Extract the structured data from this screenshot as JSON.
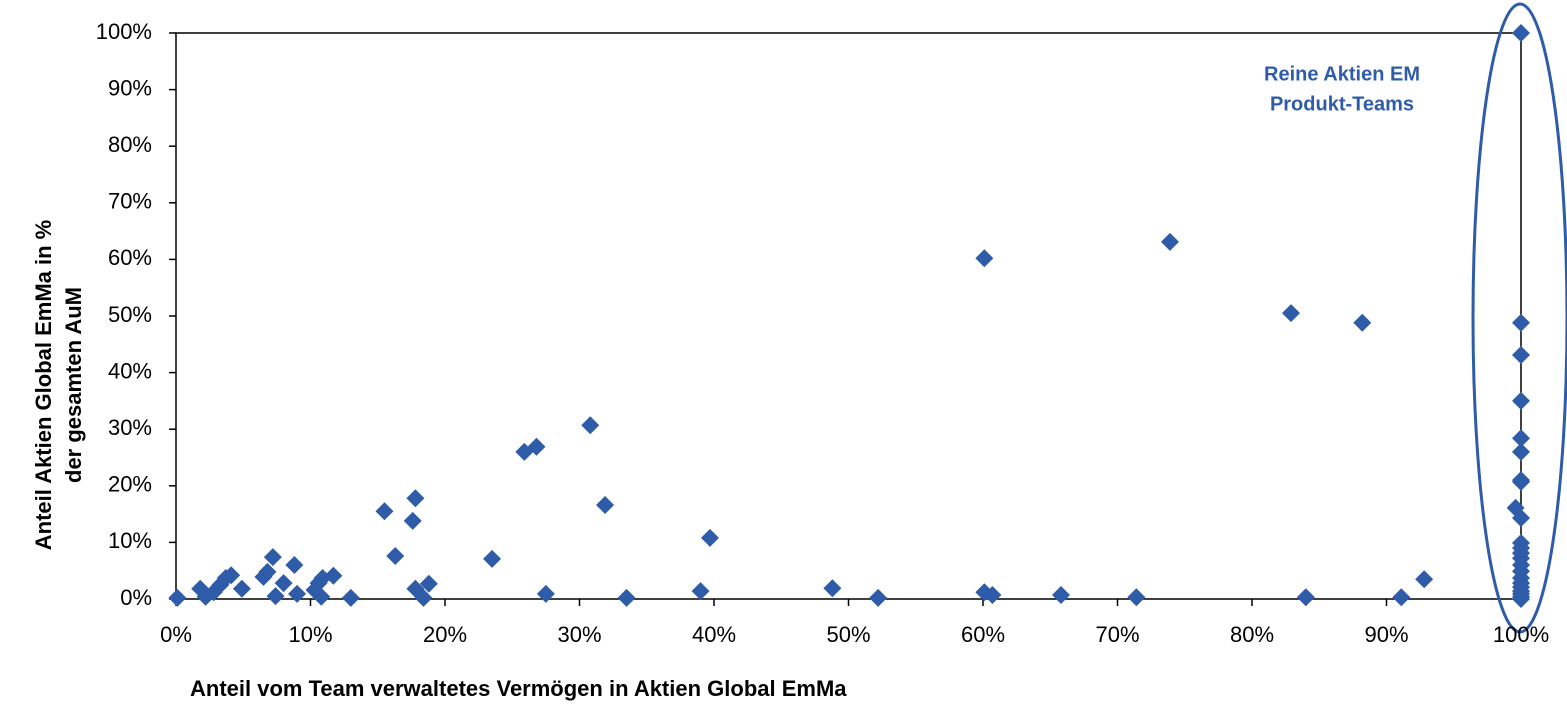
{
  "chart_data": {
    "type": "scatter",
    "xlabel": "Anteil vom Team verwaltetes Vermögen in Aktien Global EmMa",
    "ylabel": [
      "Anteil Aktien Global EmMa in %",
      "der gesamten AuM"
    ],
    "annotation": [
      "Reine Aktien EM",
      "Produkt-Teams"
    ],
    "color": "#2f5ca8",
    "x": [
      0.1,
      1.8,
      2.2,
      2.8,
      3.3,
      3.7,
      4.1,
      4.9,
      6.5,
      6.8,
      7.2,
      7.4,
      8.0,
      8.8,
      9.0,
      10.3,
      10.6,
      10.8,
      10.9,
      11.7,
      13.0,
      15.5,
      16.3,
      17.6,
      17.8,
      17.8,
      18.4,
      18.8,
      23.5,
      25.9,
      26.8,
      27.5,
      30.8,
      31.9,
      33.5,
      39.0,
      39.7,
      48.8,
      52.2,
      60.1,
      60.1,
      60.7,
      65.8,
      71.4,
      73.9,
      82.9,
      84.0,
      88.2,
      91.1,
      92.8,
      99.6,
      100,
      100,
      100,
      100,
      100,
      100,
      100,
      100,
      100,
      100,
      100,
      100,
      100,
      100,
      100,
      100,
      100,
      100,
      100,
      100,
      100,
      100
    ],
    "values": [
      0.2,
      1.8,
      0.4,
      1.2,
      2.5,
      3.7,
      4.2,
      1.8,
      3.9,
      4.8,
      7.4,
      0.5,
      2.8,
      6.0,
      0.9,
      1.6,
      2.8,
      0.4,
      3.7,
      4.1,
      0.2,
      15.5,
      7.6,
      13.8,
      17.8,
      1.8,
      0.2,
      2.7,
      7.1,
      26.0,
      26.9,
      0.9,
      30.7,
      16.6,
      0.2,
      1.4,
      10.8,
      1.9,
      0.2,
      60.2,
      1.2,
      0.7,
      0.7,
      0.3,
      63.1,
      50.5,
      0.3,
      48.8,
      0.3,
      3.5,
      16.1,
      100,
      48.8,
      43.1,
      35.0,
      28.4,
      26.0,
      21.0,
      20.7,
      14.3,
      9.9,
      9.0,
      8.1,
      7.2,
      6.0,
      4.9,
      3.7,
      2.8,
      2.1,
      1.4,
      0.9,
      0.4,
      0
    ],
    "xlim": [
      0,
      100
    ],
    "ylim": [
      0,
      100
    ],
    "xticks": [
      {
        "value": 0,
        "label": "0%"
      },
      {
        "value": 10,
        "label": "10%"
      },
      {
        "value": 20,
        "label": "20%"
      },
      {
        "value": 30,
        "label": "30%"
      },
      {
        "value": 40,
        "label": "40%"
      },
      {
        "value": 50,
        "label": "50%"
      },
      {
        "value": 60,
        "label": "60%"
      },
      {
        "value": 70,
        "label": "70%"
      },
      {
        "value": 80,
        "label": "80%"
      },
      {
        "value": 90,
        "label": "90%"
      },
      {
        "value": 100,
        "label": "100%"
      }
    ],
    "yticks": [
      {
        "value": 0,
        "label": "0%"
      },
      {
        "value": 10,
        "label": "10%"
      },
      {
        "value": 20,
        "label": "20%"
      },
      {
        "value": 30,
        "label": "30%"
      },
      {
        "value": 40,
        "label": "40%"
      },
      {
        "value": 50,
        "label": "50%"
      },
      {
        "value": 60,
        "label": "60%"
      },
      {
        "value": 70,
        "label": "70%"
      },
      {
        "value": 80,
        "label": "80%"
      },
      {
        "value": 90,
        "label": "90%"
      },
      {
        "value": 100,
        "label": "100%"
      }
    ],
    "grid": false
  }
}
